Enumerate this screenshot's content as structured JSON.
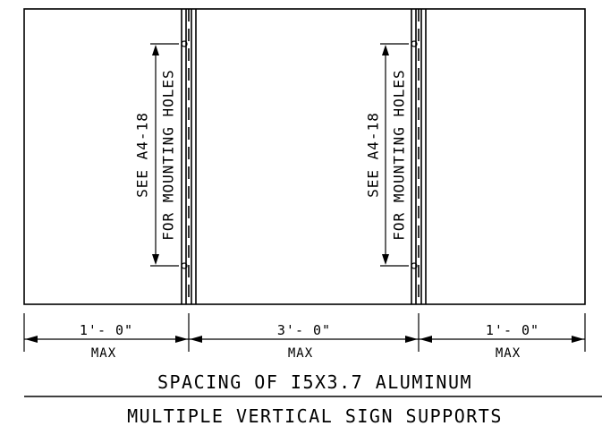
{
  "edge_mark": "N",
  "supports": [
    {
      "note_line1": "SEE A4-18",
      "note_line2": "FOR MOUNTING HOLES"
    },
    {
      "note_line1": "SEE A4-18",
      "note_line2": "FOR MOUNTING HOLES"
    }
  ],
  "dimensions": [
    {
      "value": "1'- 0\"",
      "limit": "MAX"
    },
    {
      "value": "3'- 0\"",
      "limit": "MAX"
    },
    {
      "value": "1'- 0\"",
      "limit": "MAX"
    }
  ],
  "title_line1": "SPACING OF I5X3.7 ALUMINUM",
  "title_line2": "MULTIPLE VERTICAL SIGN SUPPORTS"
}
